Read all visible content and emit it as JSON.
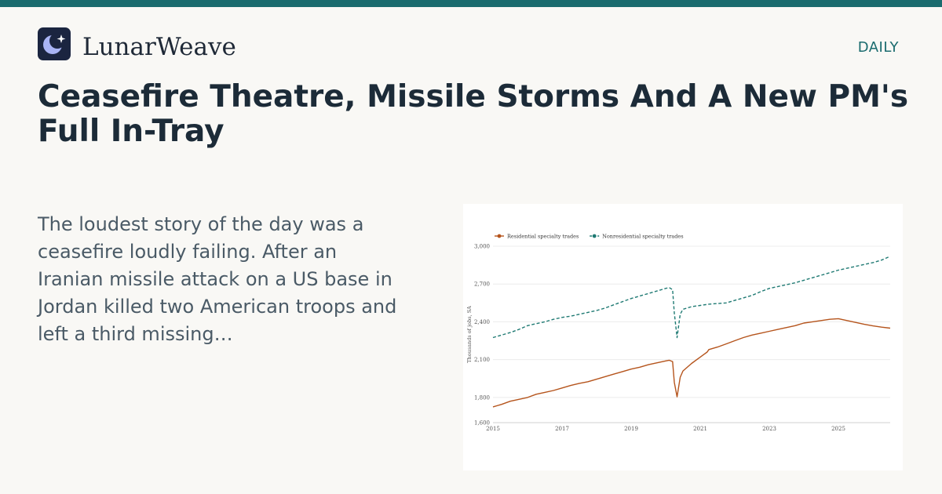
{
  "header": {
    "brand": "LunarWeave",
    "logo_icon": "crescent-moon-star-icon",
    "section": "DAILY",
    "accent_color": "#1a6b6e"
  },
  "article": {
    "headline": "Ceasefire Theatre, Missile Storms And A New PM's Full In-Tray",
    "summary": "The loudest story of the day was a ceasefire loudly failing. After an Iranian missile attack on a US base in Jordan killed two American troops and left a third missing…"
  },
  "chart_data": {
    "type": "line",
    "title": "",
    "xlabel": "",
    "ylabel": "Thousands of jobs, SA",
    "xlim": [
      2015,
      2026.5
    ],
    "ylim": [
      1600,
      3000
    ],
    "x_ticks": [
      2015,
      2017,
      2019,
      2021,
      2023,
      2025
    ],
    "y_ticks": [
      1600,
      1800,
      2100,
      2400,
      2700,
      3000
    ],
    "y_tick_labels": [
      "1,600",
      "1,800",
      "2,100",
      "2,400",
      "2,700",
      "3,000"
    ],
    "grid": "horizontal",
    "legend_position": "top-left",
    "series": [
      {
        "name": "Residential specialty trades",
        "color": "#b5541c",
        "dash": "solid",
        "points": [
          [
            2015.0,
            1725
          ],
          [
            2015.25,
            1745
          ],
          [
            2015.5,
            1770
          ],
          [
            2015.75,
            1785
          ],
          [
            2016.0,
            1800
          ],
          [
            2016.25,
            1825
          ],
          [
            2016.5,
            1840
          ],
          [
            2016.75,
            1855
          ],
          [
            2017.0,
            1875
          ],
          [
            2017.25,
            1895
          ],
          [
            2017.5,
            1912
          ],
          [
            2017.75,
            1925
          ],
          [
            2018.0,
            1945
          ],
          [
            2018.25,
            1965
          ],
          [
            2018.5,
            1985
          ],
          [
            2018.75,
            2005
          ],
          [
            2019.0,
            2025
          ],
          [
            2019.25,
            2040
          ],
          [
            2019.5,
            2060
          ],
          [
            2019.75,
            2075
          ],
          [
            2020.0,
            2090
          ],
          [
            2020.1,
            2095
          ],
          [
            2020.2,
            2085
          ],
          [
            2020.25,
            1920
          ],
          [
            2020.33,
            1805
          ],
          [
            2020.42,
            1960
          ],
          [
            2020.5,
            2010
          ],
          [
            2020.75,
            2070
          ],
          [
            2021.0,
            2120
          ],
          [
            2021.1,
            2140
          ],
          [
            2021.2,
            2160
          ],
          [
            2021.25,
            2180
          ],
          [
            2021.5,
            2200
          ],
          [
            2021.75,
            2225
          ],
          [
            2022.0,
            2250
          ],
          [
            2022.25,
            2275
          ],
          [
            2022.5,
            2295
          ],
          [
            2022.75,
            2310
          ],
          [
            2023.0,
            2325
          ],
          [
            2023.25,
            2340
          ],
          [
            2023.5,
            2355
          ],
          [
            2023.75,
            2370
          ],
          [
            2024.0,
            2390
          ],
          [
            2024.25,
            2400
          ],
          [
            2024.5,
            2410
          ],
          [
            2024.75,
            2420
          ],
          [
            2025.0,
            2425
          ],
          [
            2025.25,
            2410
          ],
          [
            2025.5,
            2395
          ],
          [
            2025.75,
            2380
          ],
          [
            2026.0,
            2368
          ],
          [
            2026.25,
            2358
          ],
          [
            2026.5,
            2350
          ]
        ]
      },
      {
        "name": "Nonresidential specialty trades",
        "color": "#1f7a73",
        "dash": "dashed",
        "points": [
          [
            2015.0,
            2275
          ],
          [
            2015.25,
            2295
          ],
          [
            2015.5,
            2315
          ],
          [
            2015.75,
            2340
          ],
          [
            2016.0,
            2370
          ],
          [
            2016.25,
            2385
          ],
          [
            2016.5,
            2400
          ],
          [
            2016.75,
            2420
          ],
          [
            2017.0,
            2435
          ],
          [
            2017.25,
            2445
          ],
          [
            2017.5,
            2460
          ],
          [
            2017.75,
            2475
          ],
          [
            2018.0,
            2490
          ],
          [
            2018.25,
            2510
          ],
          [
            2018.5,
            2535
          ],
          [
            2018.75,
            2560
          ],
          [
            2019.0,
            2585
          ],
          [
            2019.25,
            2605
          ],
          [
            2019.5,
            2625
          ],
          [
            2019.75,
            2645
          ],
          [
            2020.0,
            2665
          ],
          [
            2020.1,
            2672
          ],
          [
            2020.2,
            2655
          ],
          [
            2020.25,
            2470
          ],
          [
            2020.33,
            2275
          ],
          [
            2020.42,
            2460
          ],
          [
            2020.5,
            2500
          ],
          [
            2020.75,
            2520
          ],
          [
            2021.0,
            2530
          ],
          [
            2021.25,
            2540
          ],
          [
            2021.5,
            2545
          ],
          [
            2021.75,
            2550
          ],
          [
            2022.0,
            2570
          ],
          [
            2022.25,
            2590
          ],
          [
            2022.5,
            2610
          ],
          [
            2022.75,
            2640
          ],
          [
            2023.0,
            2665
          ],
          [
            2023.25,
            2680
          ],
          [
            2023.5,
            2695
          ],
          [
            2023.75,
            2710
          ],
          [
            2024.0,
            2730
          ],
          [
            2024.25,
            2750
          ],
          [
            2024.5,
            2770
          ],
          [
            2024.75,
            2790
          ],
          [
            2025.0,
            2810
          ],
          [
            2025.25,
            2825
          ],
          [
            2025.5,
            2840
          ],
          [
            2025.75,
            2855
          ],
          [
            2026.0,
            2870
          ],
          [
            2026.25,
            2890
          ],
          [
            2026.5,
            2920
          ]
        ]
      }
    ]
  }
}
